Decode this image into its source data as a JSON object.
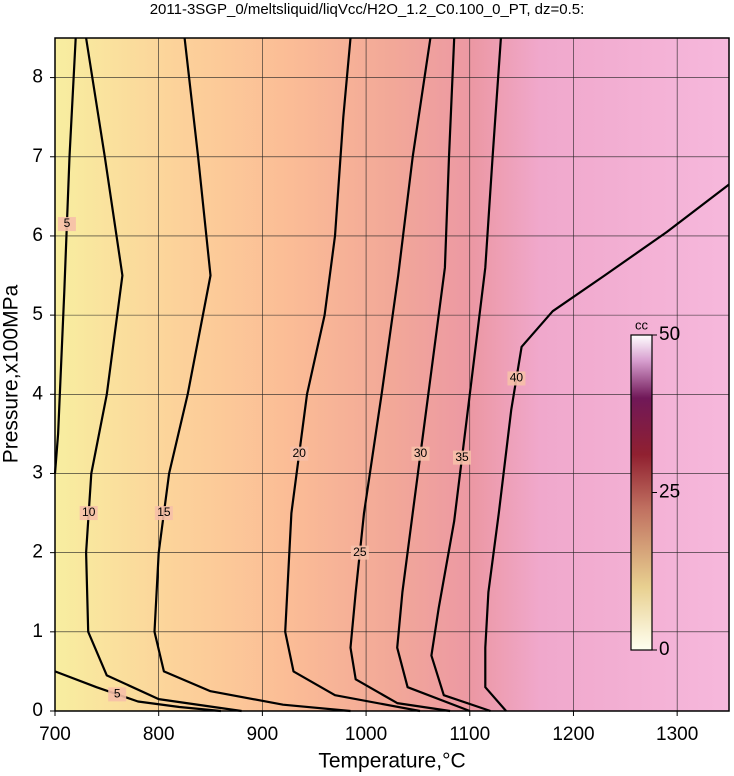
{
  "chart_data": {
    "type": "contour",
    "title": "2011-3SGP_0/meltsliquid/liqVcc/H2O_1.2_C0.100_0_PT, dz=0.5:",
    "x_label": "Temperature,°C",
    "y_label": "Pressure,x100MPa",
    "xlim": [
      700,
      1350
    ],
    "xticks": [
      700,
      800,
      900,
      1000,
      1100,
      1200,
      1300
    ],
    "ylim": [
      0,
      8.5
    ],
    "yticks": [
      0,
      1,
      2,
      3,
      4,
      5,
      6,
      7,
      8
    ],
    "grid": true,
    "colorbar": {
      "label": "cc",
      "lim": [
        0,
        50
      ],
      "ticks": [
        0,
        25,
        50
      ]
    },
    "contours": [
      {
        "level": 5,
        "x": [
          720,
          714,
          709,
          703,
          700
        ],
        "y": [
          8.5,
          7,
          5.3,
          3.5,
          3.0
        ]
      },
      {
        "level": 5,
        "x": [
          700,
          740,
          780,
          820,
          860
        ],
        "y": [
          0.5,
          0.3,
          0.12,
          0.05,
          0
        ]
      },
      {
        "level": 10,
        "x": [
          730,
          748,
          765,
          750,
          735,
          730,
          732,
          750,
          800,
          880
        ],
        "y": [
          8.5,
          7,
          5.5,
          4,
          3,
          2,
          1,
          0.45,
          0.15,
          0
        ]
      },
      {
        "level": 15,
        "x": [
          825,
          838,
          850,
          828,
          810,
          800,
          796,
          805,
          850,
          920,
          985
        ],
        "y": [
          8.5,
          7,
          5.5,
          4,
          3,
          2,
          1,
          0.5,
          0.25,
          0.08,
          0
        ]
      },
      {
        "level": 20,
        "x": [
          985,
          978,
          970,
          960,
          943,
          928,
          922,
          930,
          970,
          1052
        ],
        "y": [
          8.5,
          7.5,
          6,
          5,
          4,
          2.5,
          1,
          0.5,
          0.2,
          0
        ]
      },
      {
        "level": 25,
        "x": [
          1062,
          1045,
          1031,
          1015,
          998,
          990,
          985,
          990,
          1030,
          1081
        ],
        "y": [
          8.5,
          7,
          5.5,
          4,
          2.5,
          1.5,
          0.8,
          0.4,
          0.1,
          0
        ]
      },
      {
        "level": 30,
        "x": [
          1085,
          1080,
          1076,
          1060,
          1045,
          1035,
          1030,
          1040,
          1100
        ],
        "y": [
          8.5,
          7,
          5.6,
          4,
          2.5,
          1.5,
          0.8,
          0.3,
          0
        ]
      },
      {
        "level": 35,
        "x": [
          1130,
          1122,
          1115,
          1100,
          1085,
          1070,
          1063,
          1075,
          1120
        ],
        "y": [
          8.5,
          7,
          5.6,
          4,
          2.4,
          1.3,
          0.7,
          0.2,
          0
        ]
      },
      {
        "level": 40,
        "x": [
          1350,
          1290,
          1230,
          1180,
          1150,
          1140,
          1128,
          1118,
          1115,
          1115,
          1135
        ],
        "y": [
          6.65,
          6.05,
          5.5,
          5.05,
          4.6,
          3.8,
          2.5,
          1.5,
          0.8,
          0.3,
          0
        ]
      }
    ]
  }
}
